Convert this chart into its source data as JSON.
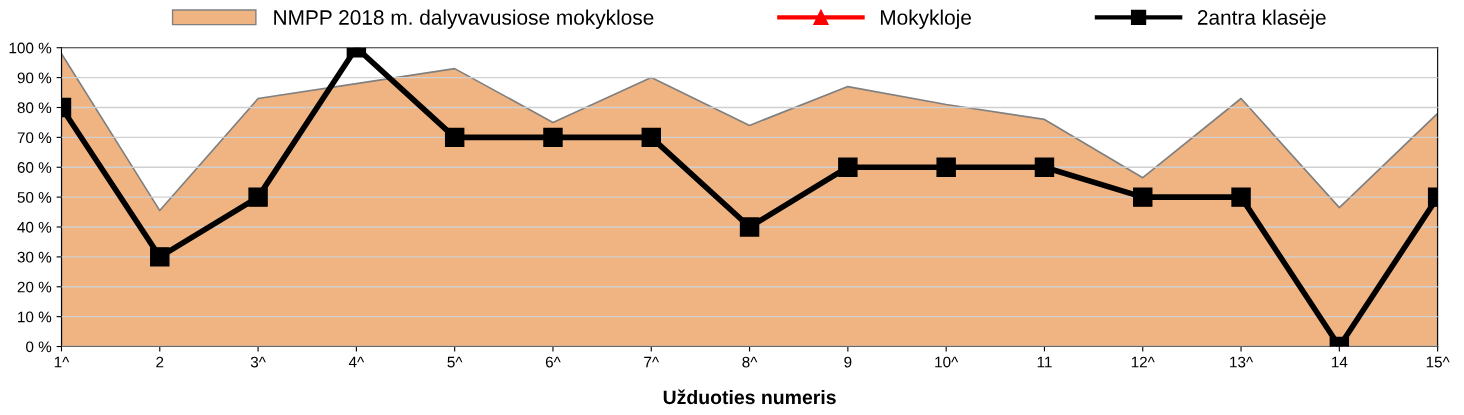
{
  "chart_data": {
    "type": "area",
    "xlabel": "Užduoties numeris",
    "categories": [
      "1^",
      "2",
      "3^",
      "4^",
      "5^",
      "6^",
      "7^",
      "8^",
      "9",
      "10^",
      "11",
      "12^",
      "13^",
      "14",
      "15^"
    ],
    "series": [
      {
        "name": "NMPP 2018 m. dalyvavusiose mokyklose",
        "color": "#f0b482",
        "values": [
          98,
          45.5,
          83,
          88,
          93,
          75,
          90,
          74,
          87,
          81,
          76,
          56.5,
          83,
          46.5,
          78
        ]
      },
      {
        "name": "Mokykloje",
        "type": "line",
        "color": "#ff0000",
        "marker": "triangle",
        "values": [
          null,
          null,
          null,
          null,
          null,
          null,
          null,
          null,
          null,
          null,
          null,
          null,
          null,
          null,
          null
        ]
      },
      {
        "name": "2antra klasėje",
        "type": "line",
        "color": "#000000",
        "marker": "square",
        "values": [
          80,
          30,
          50,
          100,
          70,
          70,
          70,
          40,
          60,
          60,
          60,
          50,
          50,
          0,
          50
        ]
      }
    ],
    "ylim": [
      0,
      100
    ],
    "yticks": [
      {
        "value": 0,
        "label": "0 %"
      },
      {
        "value": 10,
        "label": "10 %"
      },
      {
        "value": 20,
        "label": "20 %"
      },
      {
        "value": 30,
        "label": "30 %"
      },
      {
        "value": 40,
        "label": "40 %"
      },
      {
        "value": 50,
        "label": "50 %"
      },
      {
        "value": 60,
        "label": "60 %"
      },
      {
        "value": 70,
        "label": "70 %"
      },
      {
        "value": 80,
        "label": "80 %"
      },
      {
        "value": 90,
        "label": "90 %"
      },
      {
        "value": 100,
        "label": "100 %"
      }
    ],
    "grid": "y",
    "legend": "top"
  }
}
